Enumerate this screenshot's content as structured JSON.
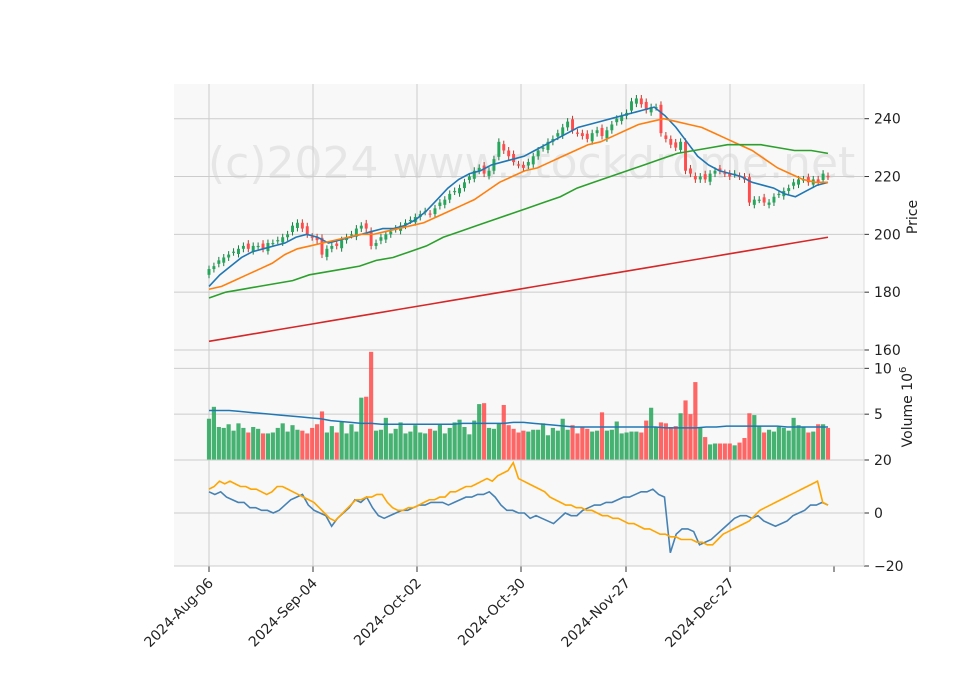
{
  "watermark": "(c)2024 www.stockdrome.net",
  "chart_data": {
    "type": "candlestick",
    "x_ticks": [
      "2024-Aug-06",
      "2024-Sep-04",
      "2024-Oct-02",
      "2024-Oct-30",
      "2024-Nov-27",
      "2024-Dec-27"
    ],
    "panels": {
      "price": {
        "ylabel": "Price",
        "yticks": [
          160,
          180,
          200,
          220,
          240
        ],
        "ylim": [
          160,
          252
        ],
        "close": [
          188,
          189,
          191,
          192,
          193,
          194,
          195,
          196,
          195,
          196,
          196,
          195,
          197,
          197,
          198,
          199,
          200,
          203,
          204,
          202,
          200,
          199,
          198,
          193,
          195,
          196,
          196,
          198,
          199,
          200,
          202,
          203,
          202,
          196,
          197,
          199,
          200,
          201,
          202,
          203,
          204,
          205,
          206,
          207,
          208,
          207,
          209,
          211,
          212,
          214,
          215,
          216,
          218,
          220,
          222,
          223,
          221,
          222,
          226,
          232,
          229,
          227,
          225,
          224,
          223,
          225,
          227,
          229,
          230,
          232,
          233,
          235,
          237,
          239,
          236,
          235,
          234,
          233,
          235,
          236,
          234,
          236,
          238,
          240,
          241,
          242,
          246,
          247,
          245,
          243,
          244,
          244,
          235,
          233,
          231,
          230,
          232,
          222,
          221,
          219,
          220,
          219,
          221,
          222,
          222,
          221,
          220,
          221,
          220,
          219,
          211,
          212,
          212,
          211,
          211,
          213,
          214,
          215,
          216,
          218,
          219,
          219,
          218,
          219,
          218,
          221,
          220
        ],
        "moving_averages": [
          {
            "color": "#1f77b4",
            "values": [
              182,
              186,
              189,
              192,
              194,
              195,
              196,
              197,
              199,
              200,
              199,
              197,
              198,
              199,
              200,
              201,
              202,
              202,
              203,
              205,
              208,
              212,
              216,
              219,
              221,
              222,
              224,
              225,
              226,
              227,
              229,
              231,
              233,
              235,
              237,
              238,
              239,
              240,
              241,
              242,
              243,
              244,
              241,
              237,
              232,
              227,
              224,
              222,
              221,
              220,
              218,
              217,
              216,
              214,
              213,
              215,
              217,
              218
            ]
          },
          {
            "color": "#ff7f0e",
            "values": [
              181,
              182,
              184,
              186,
              188,
              190,
              193,
              195,
              196,
              197,
              198,
              199,
              200,
              200,
              201,
              202,
              203,
              204,
              206,
              208,
              210,
              212,
              215,
              218,
              220,
              222,
              223,
              225,
              227,
              229,
              231,
              232,
              234,
              236,
              238,
              239,
              240,
              239,
              238,
              237,
              235,
              233,
              231,
              229,
              226,
              223,
              221,
              219,
              218,
              218
            ]
          },
          {
            "color": "#2ca02c",
            "values": [
              178,
              180,
              181,
              182,
              183,
              184,
              186,
              187,
              188,
              189,
              191,
              192,
              194,
              196,
              199,
              201,
              203,
              205,
              207,
              209,
              211,
              213,
              216,
              218,
              220,
              222,
              224,
              226,
              228,
              229,
              230,
              231,
              231,
              231,
              230,
              229,
              229,
              228
            ]
          },
          {
            "color": "#d62728",
            "values": [
              163,
              164,
              165,
              166,
              167,
              168,
              169,
              170,
              171,
              172,
              173,
              174,
              175,
              176,
              177,
              178,
              179,
              180,
              181,
              182,
              183,
              184,
              185,
              186,
              187,
              188,
              189,
              190,
              191,
              192,
              193,
              194,
              195,
              196,
              197,
              198,
              199
            ]
          }
        ]
      },
      "volume": {
        "ylabel": "Volume  10^6",
        "yticks": [
          5,
          10
        ],
        "ylim": [
          0,
          12
        ],
        "values": [
          4.5,
          5.8,
          3.6,
          3.5,
          3.9,
          3.2,
          4.0,
          3.5,
          3.0,
          3.6,
          3.4,
          2.9,
          2.9,
          3.0,
          3.5,
          4.0,
          3.1,
          3.8,
          3.3,
          3.2,
          2.9,
          3.5,
          3.9,
          5.3,
          3.0,
          3.7,
          3.0,
          4.2,
          2.9,
          3.9,
          3.1,
          6.8,
          6.9,
          11.8,
          3.2,
          3.3,
          4.6,
          2.9,
          3.4,
          4.1,
          2.9,
          3.1,
          3.8,
          3.0,
          2.9,
          3.4,
          3.2,
          3.9,
          2.9,
          3.5,
          4.1,
          4.4,
          3.6,
          2.8,
          4.3,
          6.1,
          6.2,
          3.5,
          3.4,
          4.0,
          6.0,
          3.8,
          3.4,
          3.0,
          3.2,
          3.1,
          3.3,
          3.3,
          4.0,
          2.7,
          3.5,
          3.2,
          4.5,
          3.3,
          3.8,
          2.9,
          3.6,
          3.4,
          3.1,
          3.2,
          5.2,
          3.2,
          3.3,
          4.2,
          2.9,
          3.0,
          3.1,
          3.1,
          3.0,
          4.3,
          5.7,
          3.6,
          4.1,
          4.0,
          3.6,
          3.7,
          5.1,
          6.5,
          5.0,
          8.5,
          3.6,
          2.5,
          1.7,
          1.8,
          1.8,
          1.8,
          1.8,
          1.6,
          1.9,
          2.4,
          5.1,
          4.9,
          3.7,
          3.0,
          3.3,
          3.1,
          3.6,
          3.5,
          3.2,
          4.6,
          3.8,
          3.6,
          3.0,
          3.1,
          3.9,
          3.9,
          3.5
        ],
        "avg": [
          5.4,
          5.4,
          5.4,
          5.3,
          5.2,
          5.1,
          5.0,
          4.9,
          4.8,
          4.7,
          4.6,
          4.5,
          4.3,
          4.2,
          4.1,
          4.0,
          4.0,
          3.9,
          3.9,
          3.9,
          3.9,
          3.9,
          3.9,
          3.9,
          3.9,
          4.0,
          4.0,
          4.0,
          4.0,
          4.0,
          4.1,
          4.1,
          4.0,
          3.9,
          3.8,
          3.7,
          3.6,
          3.6,
          3.6,
          3.6,
          3.6,
          3.6,
          3.6,
          3.6,
          3.6,
          3.5,
          3.5,
          3.5,
          3.5,
          3.6,
          3.6,
          3.7,
          3.7,
          3.7,
          3.7,
          3.7,
          3.7,
          3.6,
          3.6,
          3.6,
          3.6,
          3.6
        ]
      },
      "oscillator": {
        "yticks": [
          -20,
          0,
          20
        ],
        "ylim": [
          -20,
          20
        ],
        "series": [
          {
            "color": "#4682b4",
            "values": [
              8,
              7,
              8,
              6,
              5,
              4,
              4,
              2,
              2,
              1,
              1,
              0,
              1,
              3,
              5,
              6,
              7,
              3,
              1,
              0,
              -1,
              -5,
              -2,
              0,
              2,
              5,
              4,
              6,
              2,
              -1,
              -2,
              -1,
              0,
              1,
              1,
              2,
              3,
              3,
              4,
              4,
              4,
              3,
              4,
              5,
              6,
              6,
              7,
              7,
              8,
              6,
              3,
              1,
              1,
              0,
              0,
              -2,
              -1,
              -2,
              -3,
              -4,
              -2,
              0,
              -1,
              -1,
              1,
              2,
              3,
              3,
              4,
              4,
              5,
              6,
              6,
              7,
              8,
              8,
              9,
              7,
              6,
              -15,
              -8,
              -6,
              -6,
              -7,
              -12,
              -11,
              -10,
              -8,
              -6,
              -4,
              -2,
              -1,
              -1,
              -2,
              -1,
              -3,
              -4,
              -5,
              -4,
              -3,
              -1,
              0,
              1,
              3,
              3,
              4,
              3
            ]
          },
          {
            "color": "#ffa500",
            "values": [
              9,
              10,
              12,
              11,
              12,
              11,
              10,
              10,
              9,
              9,
              8,
              7,
              8,
              10,
              10,
              9,
              8,
              7,
              6,
              5,
              4,
              2,
              0,
              -2,
              -3,
              -1,
              1,
              3,
              5,
              5,
              6,
              6,
              7,
              7,
              4,
              2,
              1,
              1,
              2,
              2,
              3,
              4,
              5,
              5,
              6,
              6,
              8,
              8,
              9,
              10,
              10,
              11,
              12,
              13,
              12,
              14,
              15,
              16,
              19,
              13,
              12,
              11,
              10,
              9,
              8,
              6,
              5,
              4,
              3,
              3,
              2,
              2,
              1,
              1,
              0,
              -1,
              -1,
              -2,
              -2,
              -3,
              -4,
              -4,
              -5,
              -6,
              -6,
              -7,
              -8,
              -8,
              -9,
              -9,
              -10,
              -10,
              -10,
              -11,
              -11,
              -12,
              -12,
              -10,
              -8,
              -7,
              -6,
              -5,
              -4,
              -3,
              -1,
              1,
              2,
              3,
              4,
              5,
              6,
              7,
              8,
              9,
              10,
              11,
              12,
              4,
              3
            ]
          }
        ]
      }
    },
    "up_color": "#26a65b",
    "down_color": "#ff4c4c",
    "grid": true,
    "background": "#f8f8f8"
  }
}
